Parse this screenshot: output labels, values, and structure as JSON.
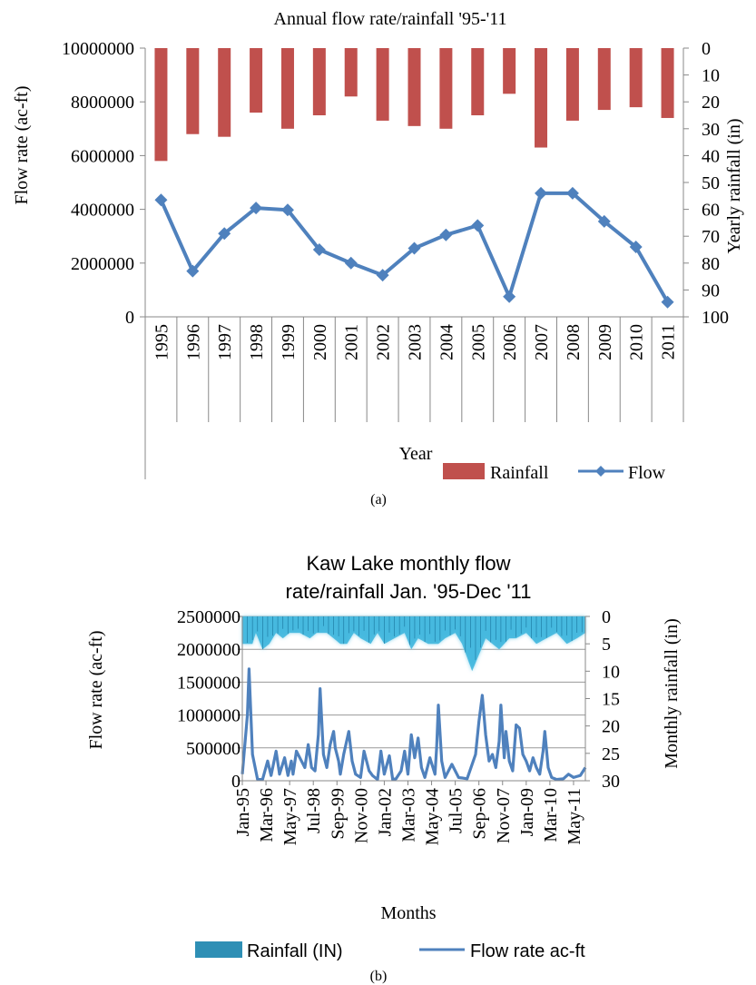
{
  "chart_data": [
    {
      "type": "bar+line",
      "title": "Annual flow rate/rainfall '95-'11",
      "xlabel": "Year",
      "ylabel": "Flow rate (ac-ft)",
      "y2label": "Yearly rainfall (in)",
      "categories": [
        "1995",
        "1996",
        "1997",
        "1998",
        "1999",
        "2000",
        "2001",
        "2002",
        "2003",
        "2004",
        "2005",
        "2006",
        "2007",
        "2008",
        "2009",
        "2010",
        "2011"
      ],
      "ylim": [
        0,
        10000000
      ],
      "y_ticks": [
        "0",
        "2000000",
        "4000000",
        "6000000",
        "8000000",
        "10000000"
      ],
      "y2lim": [
        0,
        100
      ],
      "y2_inverted": true,
      "y2_ticks": [
        "0",
        "10",
        "20",
        "30",
        "40",
        "50",
        "60",
        "70",
        "80",
        "90",
        "100"
      ],
      "series": [
        {
          "name": "Rainfall",
          "kind": "bar",
          "axis": "y2",
          "color": "#c0504d",
          "values": [
            42,
            32,
            33,
            24,
            30,
            25,
            18,
            27,
            29,
            30,
            25,
            17,
            37,
            27,
            23,
            22,
            26
          ]
        },
        {
          "name": "Flow",
          "kind": "line",
          "axis": "y",
          "color": "#4f81bd",
          "values": [
            4350000,
            1700000,
            3100000,
            4050000,
            3980000,
            2500000,
            2000000,
            1550000,
            2550000,
            3050000,
            3400000,
            750000,
            4600000,
            4600000,
            3550000,
            2600000,
            550000
          ]
        }
      ],
      "legend": "bottom-right",
      "grid": false
    },
    {
      "type": "bar+line",
      "title": "Kaw Lake monthly flow rate/rainfall Jan. '95-Dec '11",
      "title_lines": [
        "Kaw Lake monthly flow",
        "rate/rainfall Jan. '95-Dec '11"
      ],
      "xlabel": "Months",
      "ylabel": "Flow rate (ac-ft)",
      "y2label": "Monthly rainfall (in)",
      "ylim": [
        0,
        2500000
      ],
      "y_ticks": [
        "0",
        "500000",
        "1000000",
        "1500000",
        "2000000",
        "2500000"
      ],
      "y2lim": [
        0,
        30
      ],
      "y2_inverted": true,
      "y2_ticks": [
        "0",
        "5",
        "10",
        "15",
        "20",
        "25",
        "30"
      ],
      "x_ticks": [
        "Jan-95",
        "Mar-96",
        "May-97",
        "Jul-98",
        "Sep-99",
        "Nov-00",
        "Jan-02",
        "Mar-03",
        "May-04",
        "Jul-05",
        "Sep-06",
        "Nov-07",
        "Jan-09",
        "Mar-10",
        "May-11"
      ],
      "flow_points": [
        [
          0,
          100000
        ],
        [
          3,
          1000000
        ],
        [
          4,
          1700000
        ],
        [
          6,
          400000
        ],
        [
          9,
          20000
        ],
        [
          12,
          20000
        ],
        [
          15,
          300000
        ],
        [
          17,
          80000
        ],
        [
          20,
          450000
        ],
        [
          22,
          100000
        ],
        [
          25,
          350000
        ],
        [
          27,
          80000
        ],
        [
          29,
          300000
        ],
        [
          30,
          100000
        ],
        [
          32,
          450000
        ],
        [
          35,
          300000
        ],
        [
          37,
          200000
        ],
        [
          39,
          550000
        ],
        [
          41,
          200000
        ],
        [
          43,
          150000
        ],
        [
          45,
          700000
        ],
        [
          46,
          1400000
        ],
        [
          48,
          400000
        ],
        [
          50,
          200000
        ],
        [
          52,
          550000
        ],
        [
          54,
          750000
        ],
        [
          55,
          500000
        ],
        [
          57,
          300000
        ],
        [
          58,
          100000
        ],
        [
          60,
          400000
        ],
        [
          63,
          750000
        ],
        [
          65,
          300000
        ],
        [
          67,
          100000
        ],
        [
          70,
          50000
        ],
        [
          72,
          450000
        ],
        [
          75,
          150000
        ],
        [
          77,
          80000
        ],
        [
          80,
          20000
        ],
        [
          82,
          450000
        ],
        [
          84,
          100000
        ],
        [
          87,
          380000
        ],
        [
          89,
          20000
        ],
        [
          91,
          30000
        ],
        [
          94,
          150000
        ],
        [
          96,
          450000
        ],
        [
          98,
          100000
        ],
        [
          100,
          700000
        ],
        [
          102,
          350000
        ],
        [
          104,
          650000
        ],
        [
          106,
          200000
        ],
        [
          108,
          50000
        ],
        [
          111,
          350000
        ],
        [
          114,
          100000
        ],
        [
          115,
          500000
        ],
        [
          116,
          1150000
        ],
        [
          118,
          300000
        ],
        [
          120,
          50000
        ],
        [
          124,
          250000
        ],
        [
          128,
          50000
        ],
        [
          133,
          30000
        ],
        [
          138,
          400000
        ],
        [
          140,
          900000
        ],
        [
          142,
          1300000
        ],
        [
          144,
          700000
        ],
        [
          146,
          300000
        ],
        [
          148,
          400000
        ],
        [
          150,
          200000
        ],
        [
          152,
          600000
        ],
        [
          153,
          1150000
        ],
        [
          155,
          350000
        ],
        [
          156,
          750000
        ],
        [
          158,
          300000
        ],
        [
          160,
          150000
        ],
        [
          162,
          850000
        ],
        [
          164,
          800000
        ],
        [
          166,
          400000
        ],
        [
          168,
          300000
        ],
        [
          170,
          150000
        ],
        [
          172,
          350000
        ],
        [
          174,
          200000
        ],
        [
          176,
          100000
        ],
        [
          178,
          450000
        ],
        [
          179,
          750000
        ],
        [
          181,
          200000
        ],
        [
          183,
          50000
        ],
        [
          186,
          20000
        ],
        [
          190,
          30000
        ],
        [
          193,
          100000
        ],
        [
          196,
          50000
        ],
        [
          200,
          80000
        ],
        [
          203,
          200000
        ]
      ],
      "rain_max_points": [
        [
          0,
          5
        ],
        [
          6,
          5
        ],
        [
          8,
          3
        ],
        [
          12,
          6
        ],
        [
          16,
          5
        ],
        [
          20,
          3
        ],
        [
          24,
          4
        ],
        [
          28,
          3
        ],
        [
          34,
          3
        ],
        [
          40,
          4
        ],
        [
          44,
          3
        ],
        [
          50,
          3
        ],
        [
          54,
          4
        ],
        [
          58,
          5
        ],
        [
          62,
          5
        ],
        [
          66,
          3
        ],
        [
          70,
          4
        ],
        [
          76,
          5
        ],
        [
          80,
          3
        ],
        [
          84,
          5
        ],
        [
          90,
          4
        ],
        [
          96,
          3
        ],
        [
          100,
          6
        ],
        [
          104,
          4
        ],
        [
          110,
          5
        ],
        [
          116,
          5
        ],
        [
          120,
          4
        ],
        [
          126,
          3
        ],
        [
          130,
          5
        ],
        [
          136,
          10
        ],
        [
          140,
          7
        ],
        [
          144,
          4
        ],
        [
          148,
          5
        ],
        [
          152,
          6
        ],
        [
          158,
          4
        ],
        [
          162,
          4
        ],
        [
          168,
          3
        ],
        [
          174,
          5
        ],
        [
          180,
          4
        ],
        [
          186,
          3
        ],
        [
          192,
          5
        ],
        [
          198,
          4
        ],
        [
          203,
          3
        ]
      ],
      "series": [
        {
          "name": "Rainfall (IN)",
          "kind": "bar",
          "axis": "y2",
          "color": "#2e8fb5"
        },
        {
          "name": "Flow rate ac-ft",
          "kind": "line",
          "axis": "y",
          "color": "#4f81bd"
        }
      ],
      "legend": "bottom",
      "grid": true
    }
  ],
  "captions": {
    "a": "(a)",
    "b": "(b)"
  }
}
